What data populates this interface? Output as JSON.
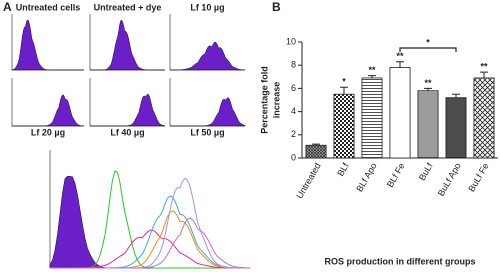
{
  "panel_a": {
    "label": "A",
    "titles": [
      "Untreated cells",
      "Untreated + dye",
      "Lf 10 µg",
      "Lf 20 µg",
      "Lf 40 µg",
      "Lf 50 µg"
    ]
  },
  "chart_data": {
    "type": "bar",
    "panel_label": "B",
    "y_label": [
      "Percentage fold",
      "increase"
    ],
    "x_label": "ROS production in different groups",
    "categories": [
      "Untreated",
      "BLf",
      "BLf Apo",
      "BLf Fe",
      "BuLf",
      "BuLf Apo",
      "BuLf Fe"
    ],
    "values": [
      1.1,
      5.5,
      6.9,
      7.8,
      5.8,
      5.2,
      6.9
    ],
    "errors": [
      0.1,
      0.6,
      0.2,
      0.5,
      0.2,
      0.3,
      0.5
    ],
    "significance": [
      null,
      "*",
      "**",
      "**",
      "**",
      null,
      "**"
    ],
    "bracket": {
      "from": "BLf Fe",
      "to": "BuLf Apo",
      "text": "*"
    },
    "patterns": [
      "crosshatch",
      "checker",
      "hlines",
      "none",
      "hlines-dense",
      "hlines-dark",
      "diag-cross"
    ],
    "ylim": [
      0,
      10
    ],
    "yticks": [
      0,
      2,
      4,
      6,
      8,
      10
    ]
  }
}
